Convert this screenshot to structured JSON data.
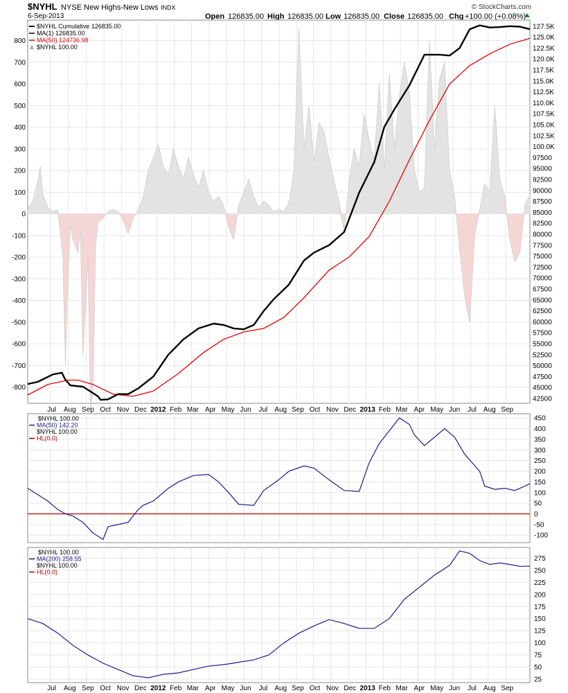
{
  "header": {
    "symbol": "$NYHL",
    "name": "NYSE New Highs-New Lows",
    "exchange": "INDX",
    "date": "6-Sep-2013",
    "open_label": "Open",
    "open": "126835.00",
    "high_label": "High",
    "high": "126835.00",
    "low_label": "Low",
    "low": "126835.00",
    "close_label": "Close",
    "close": "126835.00",
    "chg_label": "Chg",
    "chg": "+100.00 (+0.08%)",
    "brand": "© StockCharts.com"
  },
  "colors": {
    "cumulative": "#000000",
    "ma50_main": "#e00000",
    "histogram_pos": "#e3e3e3",
    "histogram_neg": "#f5d6d6",
    "osc_line": "#1a1a8c",
    "zero_line": "#b00000",
    "grid": "#e6e6e6"
  },
  "chart_data": [
    {
      "type": "line",
      "panel": "main",
      "legend": [
        {
          "label": "$NYHL  Cumulative  126835.00",
          "color": "#000000"
        },
        {
          "label": "MA(1) 126835.00",
          "color": "#000000"
        },
        {
          "label": "MA(50) 124736.98",
          "color": "#e00000"
        },
        {
          "label": "$NYHL  100.00",
          "color": "#999999"
        }
      ],
      "x_ticks": [
        {
          "label": "Jul",
          "t": 0.045,
          "bold": false
        },
        {
          "label": "Aug",
          "t": 0.081,
          "bold": false
        },
        {
          "label": "Sep",
          "t": 0.117,
          "bold": false
        },
        {
          "label": "Oct",
          "t": 0.152,
          "bold": false
        },
        {
          "label": "Nov",
          "t": 0.187,
          "bold": false
        },
        {
          "label": "Dec",
          "t": 0.222,
          "bold": false
        },
        {
          "label": "2012",
          "t": 0.257,
          "bold": true
        },
        {
          "label": "Feb",
          "t": 0.292,
          "bold": false
        },
        {
          "label": "Mar",
          "t": 0.326,
          "bold": false
        },
        {
          "label": "Apr",
          "t": 0.361,
          "bold": false
        },
        {
          "label": "May",
          "t": 0.396,
          "bold": false
        },
        {
          "label": "Jun",
          "t": 0.431,
          "bold": false
        },
        {
          "label": "Jul",
          "t": 0.466,
          "bold": false
        },
        {
          "label": "Aug",
          "t": 0.501,
          "bold": false
        },
        {
          "label": "Sep",
          "t": 0.535,
          "bold": false
        },
        {
          "label": "Oct",
          "t": 0.569,
          "bold": false
        },
        {
          "label": "Nov",
          "t": 0.604,
          "bold": false
        },
        {
          "label": "Dec",
          "t": 0.639,
          "bold": false
        },
        {
          "label": "2013",
          "t": 0.674,
          "bold": true
        },
        {
          "label": "Feb",
          "t": 0.708,
          "bold": false
        },
        {
          "label": "Mar",
          "t": 0.742,
          "bold": false
        },
        {
          "label": "Apr",
          "t": 0.777,
          "bold": false
        },
        {
          "label": "May",
          "t": 0.812,
          "bold": false
        },
        {
          "label": "Jun",
          "t": 0.847,
          "bold": false
        },
        {
          "label": "Jul",
          "t": 0.882,
          "bold": false
        },
        {
          "label": "Aug",
          "t": 0.917,
          "bold": false
        },
        {
          "label": "Sep",
          "t": 0.952,
          "bold": false
        }
      ],
      "left_axis": {
        "ticks": [
          "800",
          "700",
          "600",
          "500",
          "400",
          "300",
          "200",
          "100",
          "0",
          "-100",
          "-200",
          "-300",
          "-400",
          "-500",
          "-600",
          "-700",
          "-800"
        ],
        "values": [
          800,
          700,
          600,
          500,
          400,
          300,
          200,
          100,
          0,
          -100,
          -200,
          -300,
          -400,
          -500,
          -600,
          -700,
          -800
        ],
        "ylim": [
          -875,
          895
        ]
      },
      "right_axis": {
        "ticks": [
          "127.5K",
          "125.0K",
          "122.5K",
          "120.0K",
          "117.5K",
          "115.0K",
          "112.5K",
          "110.0K",
          "107.5K",
          "105.0K",
          "102.5K",
          "100.0K",
          "97500",
          "95000",
          "92500",
          "90000",
          "87500",
          "85000",
          "82500",
          "80000",
          "77500",
          "75000",
          "72500",
          "70000",
          "67500",
          "65000",
          "62500",
          "60000",
          "57500",
          "55000",
          "52500",
          "50000",
          "47500",
          "45000",
          "42500"
        ],
        "values": [
          127500,
          125000,
          122500,
          120000,
          117500,
          115000,
          112500,
          110000,
          107500,
          105000,
          102500,
          100000,
          97500,
          95000,
          92500,
          90000,
          87500,
          85000,
          82500,
          80000,
          77500,
          75000,
          72500,
          70000,
          67500,
          65000,
          62500,
          60000,
          57500,
          55000,
          52500,
          50000,
          47500,
          45000,
          42500
        ],
        "ylim": [
          41400,
          128900
        ]
      },
      "cumulative": {
        "t": [
          0,
          0.02,
          0.05,
          0.068,
          0.075,
          0.085,
          0.11,
          0.14,
          0.145,
          0.16,
          0.18,
          0.2,
          0.22,
          0.25,
          0.28,
          0.31,
          0.34,
          0.37,
          0.39,
          0.41,
          0.43,
          0.45,
          0.47,
          0.49,
          0.52,
          0.55,
          0.57,
          0.6,
          0.63,
          0.66,
          0.69,
          0.71,
          0.73,
          0.76,
          0.79,
          0.82,
          0.84,
          0.86,
          0.88,
          0.9,
          0.92,
          0.94,
          0.96,
          0.98,
          1.0
        ],
        "v": [
          45800,
          46300,
          48000,
          48400,
          46800,
          45500,
          45200,
          43000,
          42200,
          42300,
          43500,
          43500,
          44800,
          47500,
          52500,
          56000,
          58500,
          59600,
          59300,
          58500,
          58300,
          59300,
          62500,
          65200,
          68500,
          74000,
          75800,
          77500,
          80500,
          89500,
          96500,
          104500,
          108500,
          114000,
          121000,
          121000,
          120800,
          122500,
          126800,
          127700,
          127200,
          127300,
          127500,
          127400,
          126835
        ]
      },
      "ma50": {
        "t": [
          0,
          0.04,
          0.08,
          0.1,
          0.13,
          0.17,
          0.21,
          0.25,
          0.3,
          0.35,
          0.39,
          0.43,
          0.47,
          0.51,
          0.55,
          0.6,
          0.64,
          0.68,
          0.72,
          0.76,
          0.8,
          0.84,
          0.88,
          0.92,
          0.96,
          1.0
        ],
        "v": [
          43300,
          45700,
          46700,
          46700,
          45700,
          43500,
          43000,
          44200,
          48200,
          53000,
          56000,
          57700,
          58500,
          61000,
          65500,
          71800,
          74800,
          79500,
          87500,
          97000,
          106000,
          114300,
          118500,
          121200,
          123400,
          124737
        ]
      },
      "histogram": {
        "t": [
          0,
          0.01,
          0.02,
          0.025,
          0.03,
          0.04,
          0.05,
          0.06,
          0.07,
          0.075,
          0.08,
          0.085,
          0.09,
          0.1,
          0.105,
          0.11,
          0.12,
          0.125,
          0.13,
          0.135,
          0.14,
          0.15,
          0.16,
          0.17,
          0.18,
          0.19,
          0.2,
          0.21,
          0.22,
          0.23,
          0.24,
          0.25,
          0.26,
          0.27,
          0.28,
          0.29,
          0.3,
          0.31,
          0.32,
          0.33,
          0.34,
          0.35,
          0.36,
          0.37,
          0.38,
          0.39,
          0.4,
          0.41,
          0.42,
          0.43,
          0.44,
          0.45,
          0.46,
          0.47,
          0.48,
          0.49,
          0.5,
          0.51,
          0.52,
          0.53,
          0.54,
          0.55,
          0.56,
          0.57,
          0.58,
          0.59,
          0.6,
          0.61,
          0.62,
          0.63,
          0.64,
          0.65,
          0.66,
          0.67,
          0.68,
          0.69,
          0.7,
          0.71,
          0.72,
          0.73,
          0.74,
          0.75,
          0.76,
          0.77,
          0.78,
          0.79,
          0.8,
          0.81,
          0.82,
          0.83,
          0.84,
          0.85,
          0.86,
          0.87,
          0.88,
          0.89,
          0.9,
          0.91,
          0.92,
          0.93,
          0.94,
          0.95,
          0.96,
          0.97,
          0.98,
          0.99,
          1.0
        ],
        "v": [
          20,
          60,
          150,
          220,
          90,
          30,
          10,
          20,
          -200,
          -700,
          -300,
          -50,
          -120,
          -180,
          -80,
          -650,
          -200,
          -900,
          -820,
          -150,
          -40,
          -20,
          10,
          20,
          10,
          -30,
          -90,
          -20,
          20,
          80,
          200,
          260,
          320,
          220,
          180,
          300,
          220,
          160,
          260,
          180,
          120,
          200,
          100,
          60,
          80,
          40,
          -60,
          -120,
          40,
          100,
          160,
          80,
          30,
          60,
          40,
          10,
          20,
          10,
          50,
          200,
          860,
          300,
          500,
          240,
          420,
          380,
          260,
          150,
          60,
          -90,
          150,
          300,
          220,
          460,
          340,
          250,
          600,
          200,
          650,
          300,
          540,
          700,
          560,
          200,
          100,
          120,
          800,
          300,
          620,
          700,
          200,
          80,
          -160,
          -380,
          -500,
          -100,
          20,
          140,
          100,
          500,
          160,
          80,
          -120,
          -220,
          -180,
          40,
          90
        ]
      }
    },
    {
      "type": "line",
      "panel": "ma50-oscillator",
      "legend": [
        {
          "label": "$NYHL  100.00",
          "color": "#000000"
        },
        {
          "label": "MA(50) 142.20",
          "color": "#1a1a8c"
        },
        {
          "label": "$NYHL  100.00",
          "color": "#000000"
        },
        {
          "label": "HL(0.0)",
          "color": "#b00000"
        }
      ],
      "right_axis": {
        "ticks": [
          "450",
          "400",
          "350",
          "300",
          "250",
          "200",
          "150",
          "100",
          "50",
          "0",
          "-50",
          "-100"
        ],
        "values": [
          450,
          400,
          350,
          300,
          250,
          200,
          150,
          100,
          50,
          0,
          -50,
          -100
        ],
        "ylim": [
          -135,
          470
        ]
      },
      "zero_line": 0,
      "ma50": {
        "t": [
          0,
          0.02,
          0.04,
          0.06,
          0.075,
          0.09,
          0.11,
          0.13,
          0.15,
          0.16,
          0.18,
          0.2,
          0.22,
          0.23,
          0.25,
          0.28,
          0.3,
          0.33,
          0.36,
          0.38,
          0.4,
          0.42,
          0.45,
          0.47,
          0.5,
          0.52,
          0.55,
          0.57,
          0.6,
          0.63,
          0.66,
          0.68,
          0.7,
          0.72,
          0.74,
          0.76,
          0.77,
          0.79,
          0.81,
          0.83,
          0.85,
          0.87,
          0.9,
          0.91,
          0.93,
          0.95,
          0.97,
          0.99,
          1.0
        ],
        "v": [
          120,
          90,
          60,
          20,
          0,
          -10,
          -40,
          -90,
          -120,
          -60,
          -50,
          -40,
          20,
          40,
          60,
          120,
          150,
          180,
          185,
          150,
          100,
          45,
          40,
          110,
          160,
          200,
          225,
          215,
          160,
          110,
          105,
          240,
          330,
          390,
          450,
          420,
          370,
          320,
          360,
          400,
          360,
          280,
          200,
          130,
          115,
          120,
          110,
          130,
          142
        ]
      }
    },
    {
      "type": "line",
      "panel": "ma200-oscillator",
      "legend": [
        {
          "label": "$NYHL  100.00",
          "color": "#000000"
        },
        {
          "label": "MA(200) 258.55",
          "color": "#1a1a8c"
        },
        {
          "label": "$NYHL  100.00",
          "color": "#000000"
        },
        {
          "label": "HL(0.0)",
          "color": "#b00000"
        }
      ],
      "right_axis": {
        "ticks": [
          "275",
          "250",
          "225",
          "200",
          "175",
          "150",
          "125",
          "100",
          "75",
          "50",
          "25"
        ],
        "values": [
          275,
          250,
          225,
          200,
          175,
          150,
          125,
          100,
          75,
          50,
          25
        ],
        "ylim": [
          18,
          297
        ]
      },
      "ma200": {
        "t": [
          0,
          0.03,
          0.06,
          0.09,
          0.12,
          0.15,
          0.18,
          0.21,
          0.24,
          0.27,
          0.3,
          0.33,
          0.36,
          0.39,
          0.42,
          0.45,
          0.48,
          0.51,
          0.54,
          0.57,
          0.6,
          0.63,
          0.66,
          0.69,
          0.72,
          0.75,
          0.78,
          0.81,
          0.84,
          0.86,
          0.88,
          0.9,
          0.92,
          0.94,
          0.96,
          0.98,
          1.0
        ],
        "v": [
          150,
          140,
          120,
          95,
          75,
          58,
          45,
          32,
          28,
          35,
          38,
          45,
          52,
          55,
          60,
          65,
          75,
          100,
          120,
          135,
          148,
          140,
          130,
          130,
          150,
          190,
          215,
          240,
          260,
          290,
          285,
          270,
          262,
          265,
          262,
          258,
          258.55
        ]
      }
    }
  ]
}
